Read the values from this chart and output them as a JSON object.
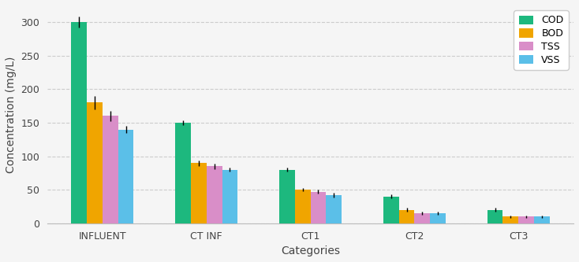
{
  "categories": [
    "INFLUENT",
    "CT INF",
    "CT1",
    "CT2",
    "CT3"
  ],
  "series": {
    "COD": {
      "values": [
        300,
        150,
        80,
        40,
        20
      ],
      "errors": [
        8,
        3,
        3,
        3,
        3
      ],
      "color": "#1db87e"
    },
    "BOD": {
      "values": [
        180,
        90,
        50,
        20,
        10
      ],
      "errors": [
        10,
        4,
        2,
        3,
        2
      ],
      "color": "#f0a500"
    },
    "TSS": {
      "values": [
        160,
        85,
        47,
        15,
        10
      ],
      "errors": [
        8,
        4,
        3,
        2,
        2
      ],
      "color": "#d98ec8"
    },
    "VSS": {
      "values": [
        140,
        80,
        42,
        15,
        10
      ],
      "errors": [
        5,
        3,
        3,
        2,
        2
      ],
      "color": "#5bbfe8"
    }
  },
  "xlabel": "Categories",
  "ylabel": "Concentration (mg/L)",
  "ylim": [
    0,
    325
  ],
  "yticks": [
    0,
    50,
    100,
    150,
    200,
    250,
    300
  ],
  "bar_width": 0.15,
  "background_color": "#f5f5f5",
  "plot_bg_color": "#f5f5f5",
  "grid_color": "#cccccc",
  "legend_loc": "upper right",
  "axis_fontsize": 10,
  "tick_fontsize": 9,
  "legend_fontsize": 9,
  "figsize": [
    7.34,
    3.33
  ],
  "dpi": 100
}
